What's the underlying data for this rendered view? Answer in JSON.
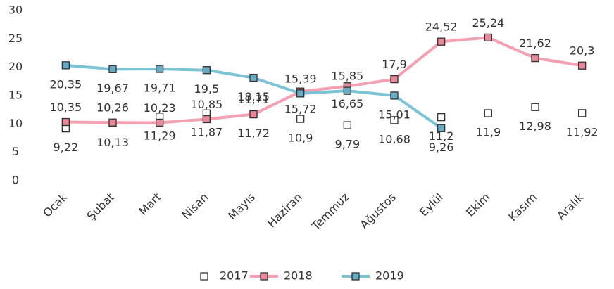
{
  "chart_data": {
    "type": "line",
    "categories": [
      "Ocak",
      "Şubat",
      "Mart",
      "Nisan",
      "Mayıs",
      "Haziran",
      "Temmuz",
      "Ağustos",
      "Eylül",
      "Ekim",
      "Kasım",
      "Aralık"
    ],
    "series": [
      {
        "name": "2017",
        "color": "#ffffff",
        "line": false,
        "values": [
          9.22,
          10.13,
          11.29,
          11.87,
          11.72,
          10.9,
          9.79,
          10.68,
          11.2,
          11.9,
          12.98,
          11.92
        ],
        "value_labels": [
          "9,22",
          "10,13",
          "11,29",
          "11,87",
          "11,72",
          "10,9",
          "9,79",
          "10,68",
          "11,2",
          "11,9",
          "12,98",
          "11,92"
        ]
      },
      {
        "name": "2018",
        "color": "#f4a0b0",
        "line": true,
        "values": [
          10.35,
          10.26,
          10.23,
          10.85,
          11.71,
          15.72,
          16.65,
          17.9,
          24.52,
          25.24,
          21.62,
          20.3
        ],
        "value_labels": [
          "10,35",
          "10,26",
          "10,23",
          "10,85",
          "11,71",
          "15,72",
          "16,65",
          "17,9",
          "24,52",
          "25,24",
          "21,62",
          "20,3"
        ]
      },
      {
        "name": "2019",
        "color": "#7cc3d6",
        "line": true,
        "values": [
          20.35,
          19.67,
          19.71,
          19.5,
          18.15,
          15.39,
          15.85,
          15.01,
          9.26,
          null,
          null,
          null
        ],
        "value_labels": [
          "20,35",
          "19,67",
          "19,71",
          "19,5",
          "18,15",
          "15,39",
          "15,85",
          "15,01",
          "9,26",
          null,
          null,
          null
        ]
      }
    ],
    "ylim": [
      0,
      30
    ],
    "yticks": [
      0,
      5,
      10,
      15,
      20,
      25,
      30
    ],
    "grid": false,
    "legend": "bottom"
  }
}
